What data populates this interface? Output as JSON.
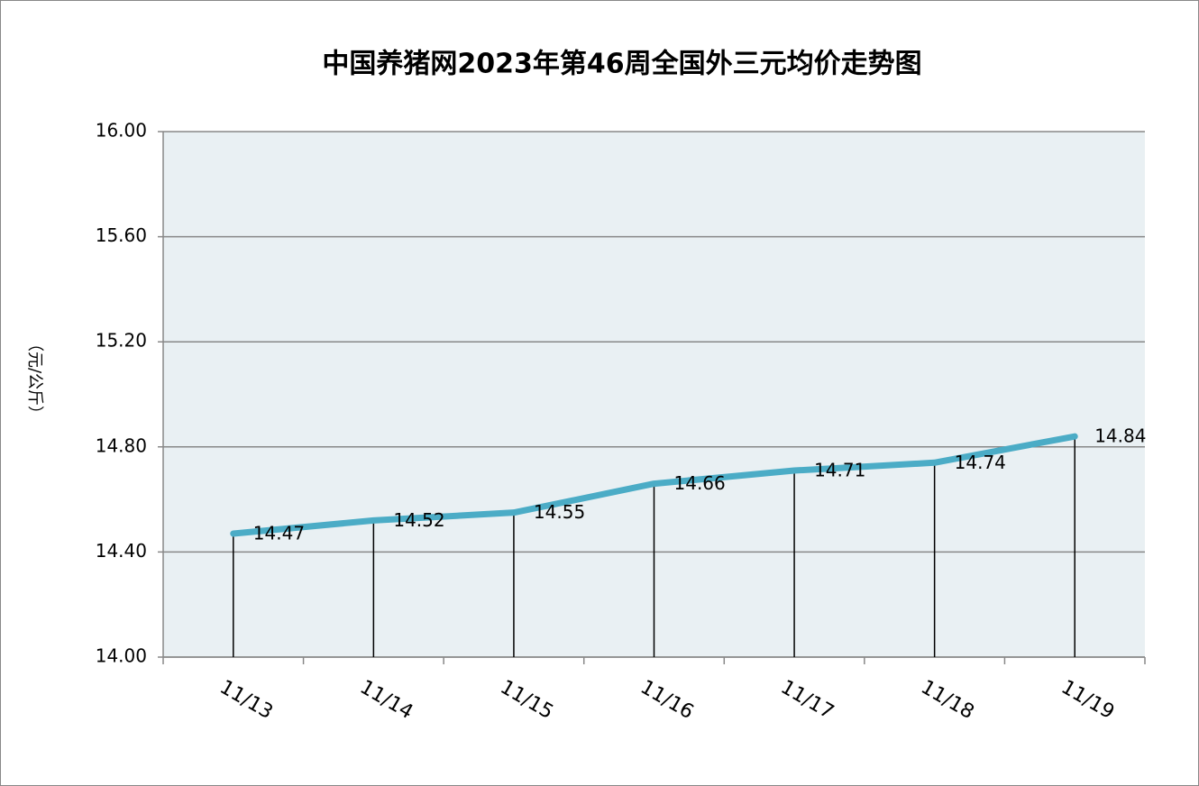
{
  "chart_data": {
    "type": "line",
    "title": "中国养猪网2023年第46周全国外三元均价走势图",
    "y_label": "（元/公斤）",
    "categories": [
      "11/13",
      "11/14",
      "11/15",
      "11/16",
      "11/17",
      "11/18",
      "11/19"
    ],
    "series": [
      {
        "name": "外三元均价",
        "color": "#4bacc6",
        "values": [
          14.47,
          14.52,
          14.55,
          14.66,
          14.71,
          14.74,
          14.84
        ]
      }
    ],
    "ylim": [
      14.0,
      16.0
    ],
    "yticks": [
      {
        "value": 14.0,
        "label": "14.00"
      },
      {
        "value": 14.4,
        "label": "14.40"
      },
      {
        "value": 14.8,
        "label": "14.80"
      },
      {
        "value": 15.2,
        "label": "15.20"
      },
      {
        "value": 15.6,
        "label": "15.60"
      },
      {
        "value": 16.0,
        "label": "16.00"
      }
    ],
    "grid": true
  }
}
